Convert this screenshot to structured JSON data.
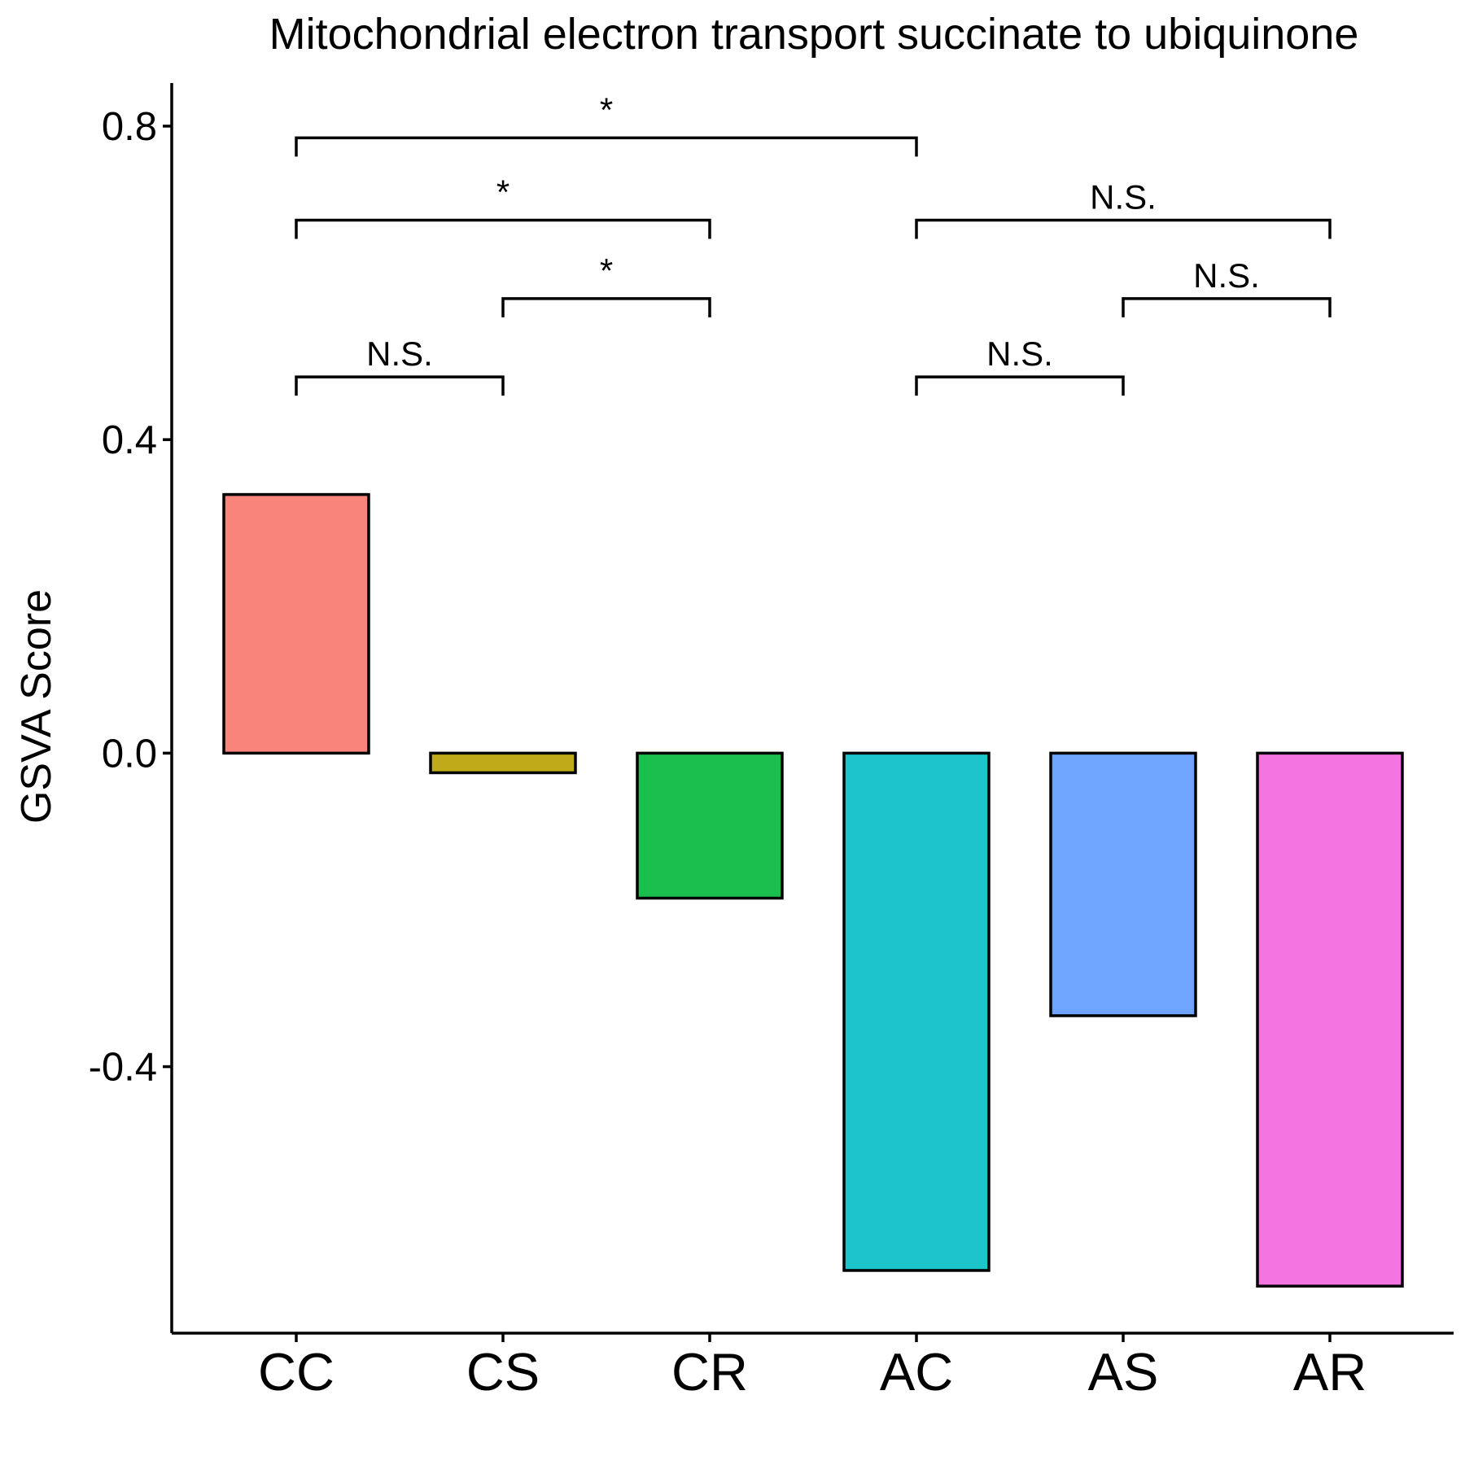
{
  "chart_data": {
    "type": "bar",
    "title": "Mitochondrial electron transport succinate to ubiquinone",
    "xlabel": "",
    "ylabel": "GSVA Score",
    "categories": [
      "CC",
      "CS",
      "CR",
      "AC",
      "AS",
      "AR"
    ],
    "values": [
      0.33,
      -0.025,
      -0.185,
      -0.66,
      -0.335,
      -0.68
    ],
    "colors": [
      "#F8847B",
      "#C0AA1A",
      "#1BBF4D",
      "#1DC5CB",
      "#70A5FF",
      "#F475E2"
    ],
    "ylim": [
      -0.74,
      0.855
    ],
    "yticks": [
      -0.4,
      0.0,
      0.4,
      0.8
    ],
    "ytick_labels": [
      "-0.4",
      "0.0",
      "0.4",
      "0.8"
    ],
    "grid": false,
    "legend": "none",
    "significance": [
      {
        "from": "CC",
        "to": "CS",
        "y": 0.48,
        "label": "N.S."
      },
      {
        "from": "CS",
        "to": "CR",
        "y": 0.58,
        "label": "*"
      },
      {
        "from": "CC",
        "to": "CR",
        "y": 0.68,
        "label": "*"
      },
      {
        "from": "CC",
        "to": "AC",
        "y": 0.785,
        "label": "*"
      },
      {
        "from": "AC",
        "to": "AS",
        "y": 0.48,
        "label": "N.S."
      },
      {
        "from": "AS",
        "to": "AR",
        "y": 0.58,
        "label": "N.S."
      },
      {
        "from": "AC",
        "to": "AR",
        "y": 0.68,
        "label": "N.S."
      }
    ]
  }
}
